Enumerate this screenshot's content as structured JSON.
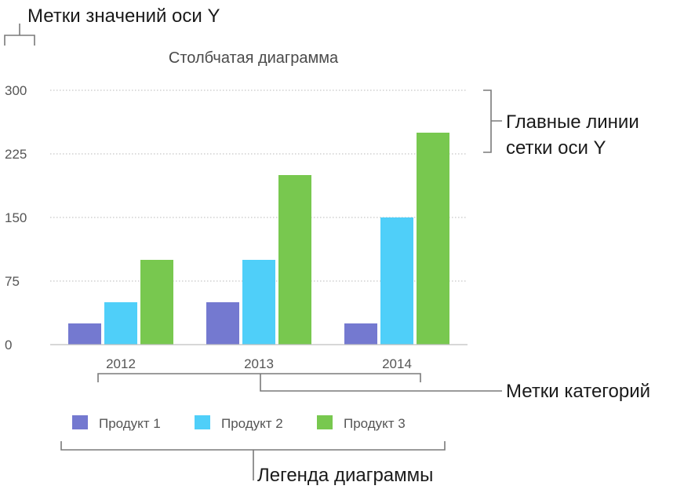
{
  "annotations": {
    "y_value_labels": "Метки значений оси Y",
    "gridlines_line1": "Главные линии",
    "gridlines_line2": "сетки оси Y",
    "category_labels": "Метки категорий",
    "legend": "Легенда диаграммы"
  },
  "colors": {
    "series": [
      "#7479d0",
      "#4fcff9",
      "#78c84f"
    ],
    "grid": "#b8b8b8",
    "axis": "#bfbfbf",
    "bracket": "#7a7a7a"
  },
  "chart_data": {
    "type": "bar",
    "title": "Столбчатая диаграмма",
    "xlabel": "",
    "ylabel": "",
    "categories": [
      "2012",
      "2013",
      "2014"
    ],
    "series": [
      {
        "name": "Продукт 1",
        "values": [
          25,
          50,
          25
        ]
      },
      {
        "name": "Продукт 2",
        "values": [
          50,
          100,
          150
        ]
      },
      {
        "name": "Продукт 3",
        "values": [
          100,
          200,
          250
        ]
      }
    ],
    "ylim": [
      0,
      300
    ],
    "yticks": [
      "0",
      "75",
      "150",
      "225",
      "300"
    ],
    "grid": true,
    "legend_position": "bottom"
  }
}
